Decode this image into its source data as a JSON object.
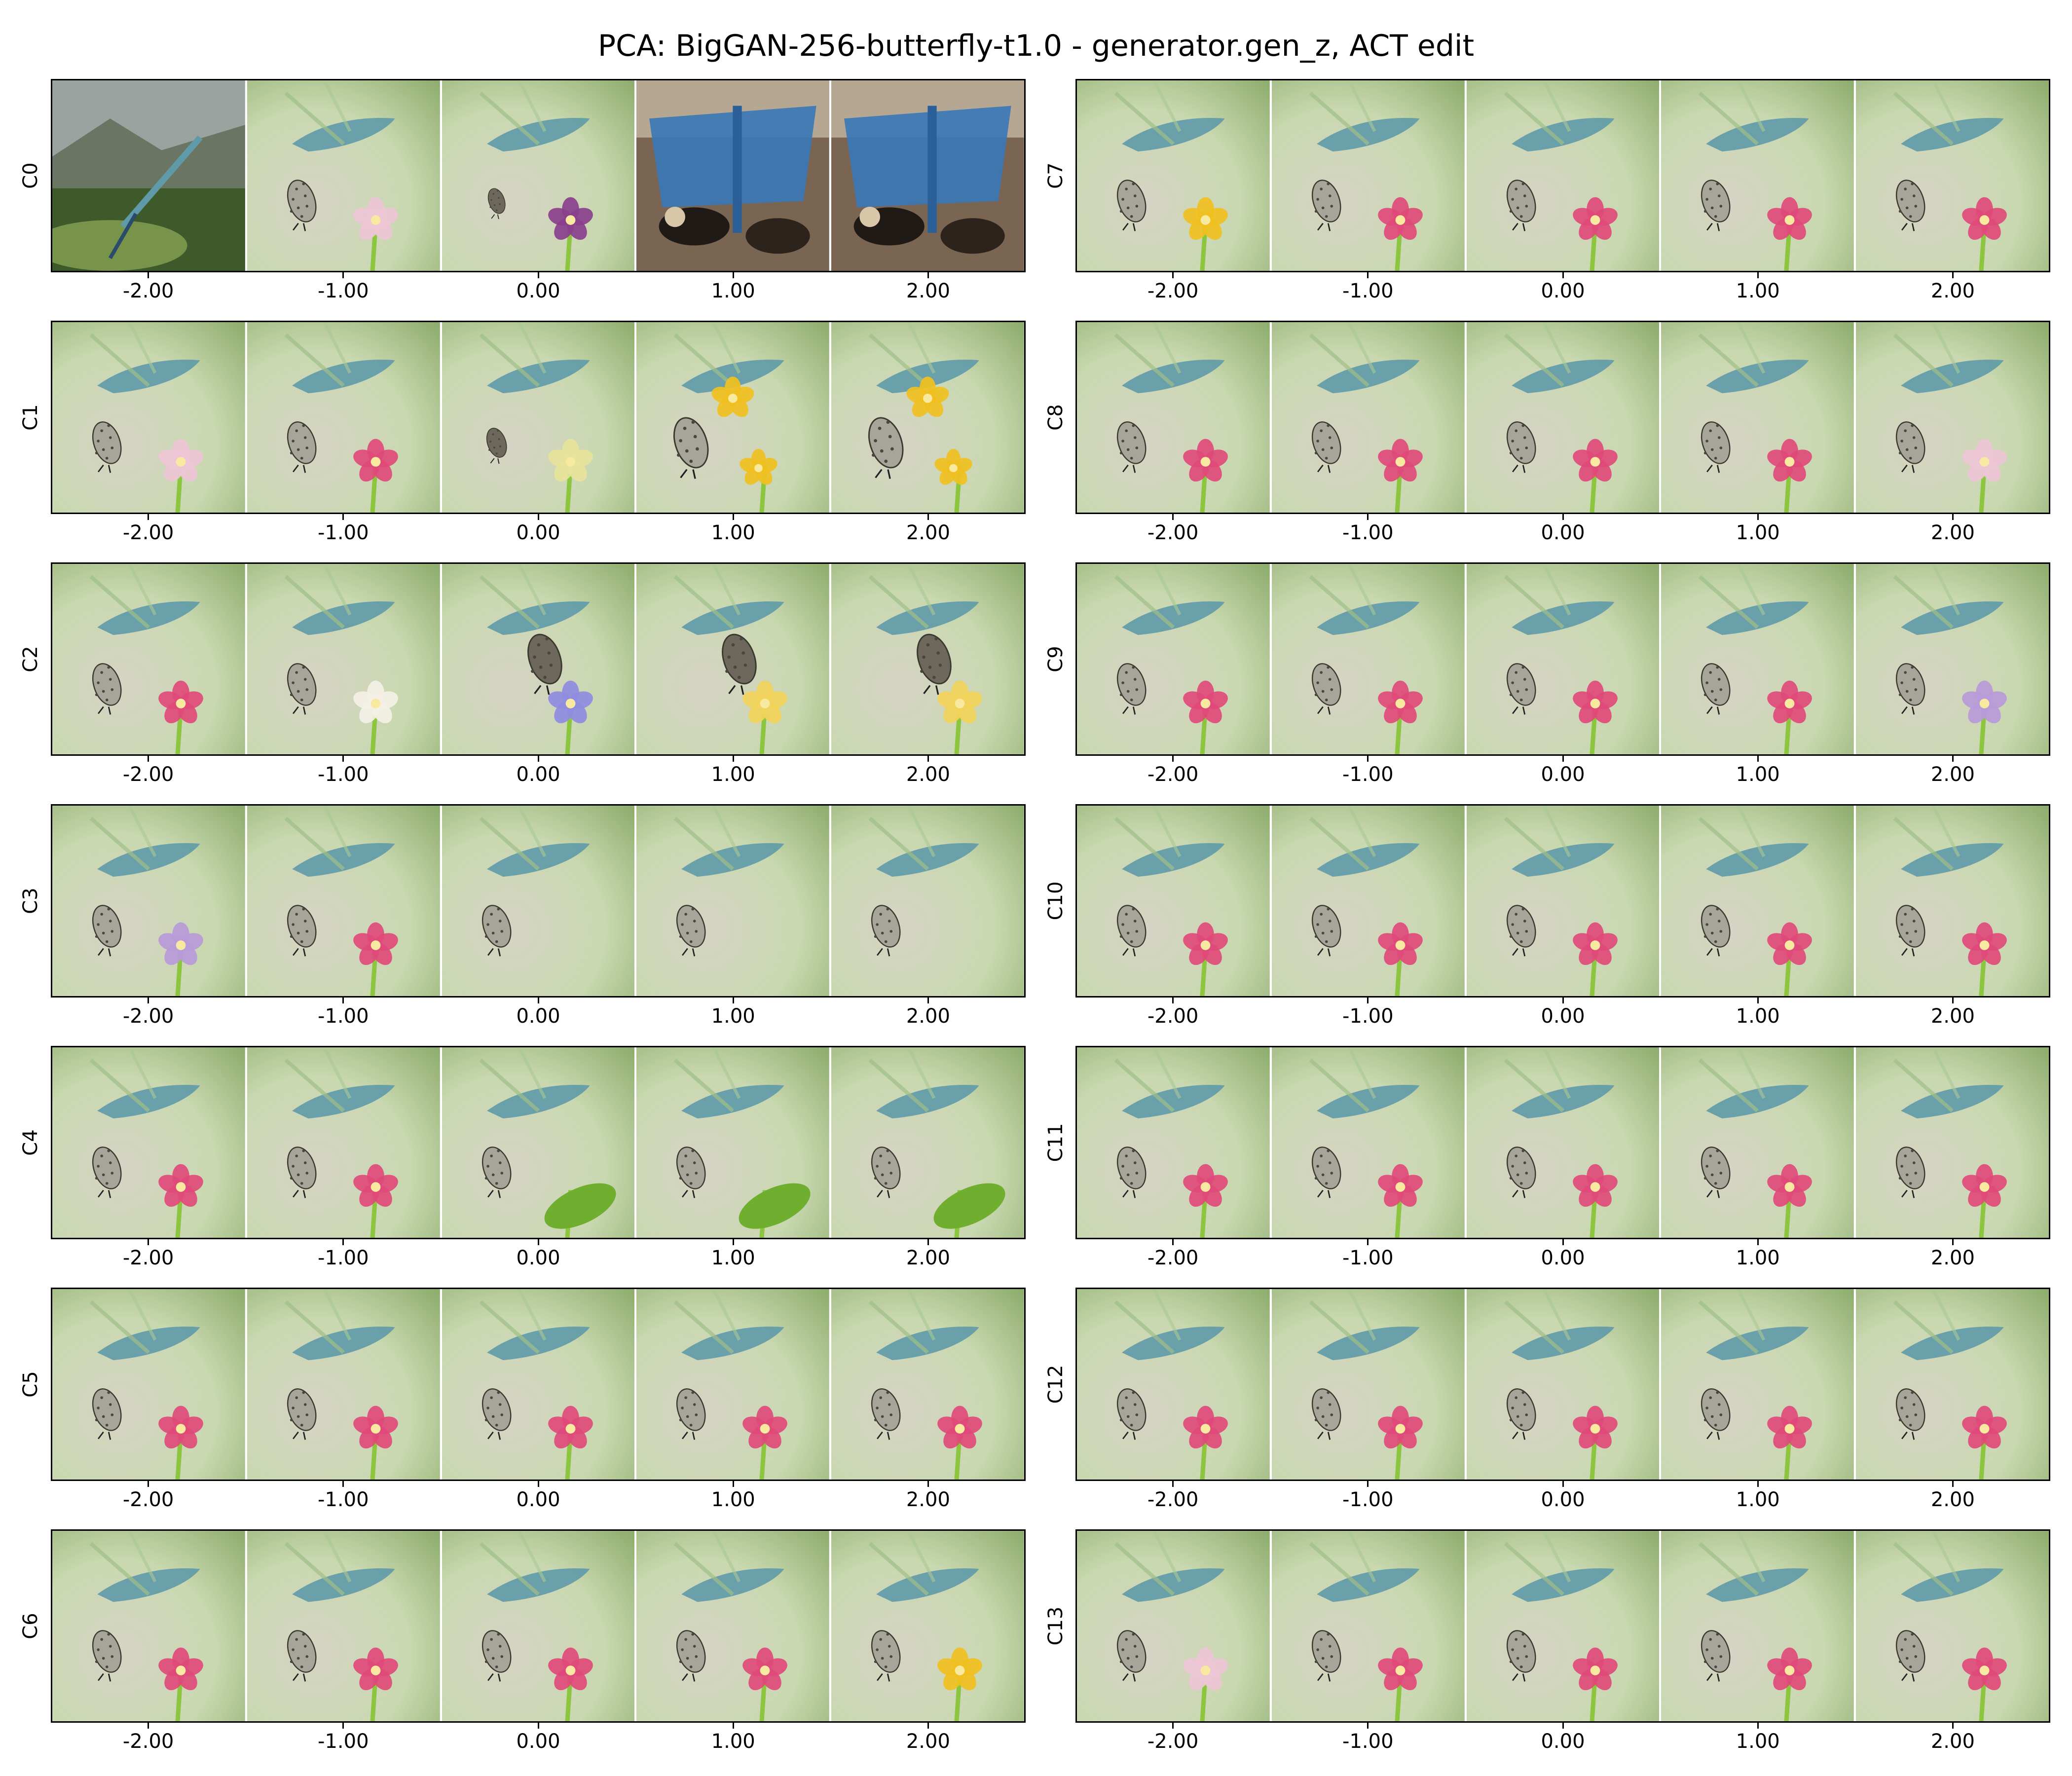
{
  "title": "PCA: BigGAN-256-butterfly-t1.0 - generator.gen_z, ACT edit",
  "x_tick_labels": [
    "-2.00",
    "-1.00",
    "0.00",
    "1.00",
    "2.00"
  ],
  "colors": {
    "background": "#ffffff",
    "frame": "#000000",
    "foliage_light": "#c9d8b0",
    "leaf_blue_green": "#5f9aa8",
    "butterfly_grey": "#a7a49a",
    "flower_pink": "#e04a7a",
    "flower_yellow": "#f0c020",
    "stem_green": "#8cc63f"
  },
  "columns": [
    {
      "side": "left",
      "rows": [
        {
          "label": "C0",
          "cells": [
            "landscape-dragonfly",
            "butterfly-pale-flower",
            "butterfly-leaf-purple-bud",
            "blue-crowd-dogs",
            "blue-crowd-dogs"
          ]
        },
        {
          "label": "C1",
          "cells": [
            "butterfly-pale-flower",
            "butterfly-pink-flower",
            "butterfly-dark-small",
            "butterfly-yellow-flowers",
            "butterfly-yellow-flowers"
          ]
        },
        {
          "label": "C2",
          "cells": [
            "butterfly-pink-flower",
            "butterfly-white-flower",
            "butterfly-large-violet",
            "butterfly-large-yellow",
            "butterfly-large-yellow"
          ]
        },
        {
          "label": "C3",
          "cells": [
            "butterfly-violet-flower",
            "butterfly-pink-flower",
            "butterfly-no-flower",
            "butterfly-no-flower",
            "butterfly-no-flower"
          ]
        },
        {
          "label": "C4",
          "cells": [
            "butterfly-pink-flower",
            "butterfly-pink-flower",
            "butterfly-green-leaves",
            "butterfly-green-leaves",
            "butterfly-green-leaves"
          ]
        },
        {
          "label": "C5",
          "cells": [
            "butterfly-pink-flower",
            "butterfly-pink-flower",
            "butterfly-pink-flower",
            "butterfly-pink-flower",
            "butterfly-pink-flower"
          ]
        },
        {
          "label": "C6",
          "cells": [
            "butterfly-pink-flower",
            "butterfly-pink-flower",
            "butterfly-pink-flower",
            "butterfly-pink-flower",
            "butterfly-yellow-flower"
          ]
        }
      ]
    },
    {
      "side": "right",
      "rows": [
        {
          "label": "C7",
          "cells": [
            "butterfly-yellow-flower",
            "butterfly-pink-flower",
            "butterfly-pink-flower",
            "butterfly-pink-flower",
            "butterfly-pink-flower"
          ]
        },
        {
          "label": "C8",
          "cells": [
            "butterfly-pink-flower",
            "butterfly-pink-flower",
            "butterfly-pink-flower",
            "butterfly-pink-flower",
            "butterfly-pale-flower"
          ]
        },
        {
          "label": "C9",
          "cells": [
            "butterfly-pink-flower",
            "butterfly-pink-flower",
            "butterfly-pink-flower",
            "butterfly-pink-flower",
            "butterfly-violet-flower"
          ]
        },
        {
          "label": "C10",
          "cells": [
            "butterfly-pink-flower",
            "butterfly-pink-flower",
            "butterfly-pink-flower",
            "butterfly-pink-flower",
            "butterfly-pink-flower"
          ]
        },
        {
          "label": "C11",
          "cells": [
            "butterfly-pink-flower",
            "butterfly-pink-flower",
            "butterfly-pink-flower",
            "butterfly-pink-flower",
            "butterfly-pink-flower"
          ]
        },
        {
          "label": "C12",
          "cells": [
            "butterfly-pink-flower",
            "butterfly-pink-flower",
            "butterfly-pink-flower",
            "butterfly-pink-flower",
            "butterfly-pink-flower"
          ]
        },
        {
          "label": "C13",
          "cells": [
            "butterfly-pale-flower",
            "butterfly-pink-flower",
            "butterfly-pink-flower",
            "butterfly-pink-flower",
            "butterfly-pink-flower"
          ]
        }
      ]
    }
  ]
}
